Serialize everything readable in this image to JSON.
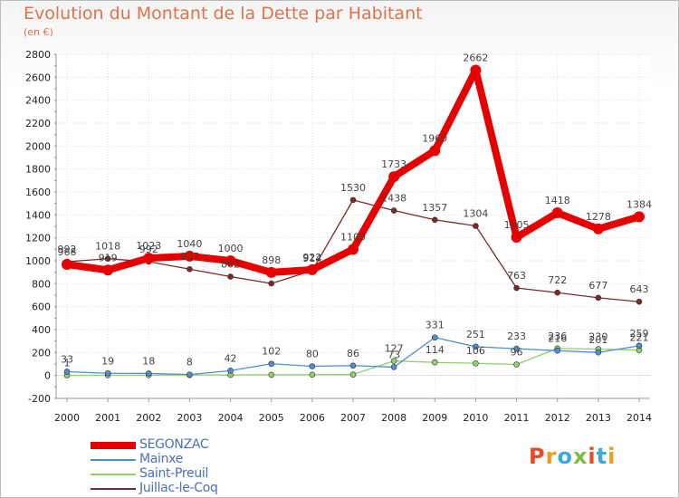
{
  "title": "Evolution du Montant de la Dette par Habitant",
  "unit": "(en €)",
  "logo": {
    "text": "Proxiti",
    "letters": [
      "P",
      "r",
      "o",
      "x",
      "i",
      "t",
      "i"
    ],
    "colors": [
      "#e84b23",
      "#f39a1b",
      "#3aa7e0",
      "#7bbf3c",
      "#e84b23",
      "#3aa7e0",
      "#f39a1b"
    ]
  },
  "chart_data": {
    "type": "line",
    "title": "Evolution du Montant de la Dette par Habitant",
    "ylabel": "(en €)",
    "x": [
      "2000",
      "2001",
      "2002",
      "2003",
      "2004",
      "2005",
      "2006",
      "2007",
      "2008",
      "2009",
      "2010",
      "2011",
      "2012",
      "2013",
      "2014"
    ],
    "ylim": [
      -200,
      2800
    ],
    "yticks": [
      -200,
      0,
      200,
      400,
      600,
      800,
      1000,
      1200,
      1400,
      1600,
      1800,
      2000,
      2200,
      2400,
      2600,
      2800
    ],
    "grid": true,
    "legend": "bottom",
    "series": [
      {
        "name": "SEGONZAC",
        "color": "#e60000",
        "values": [
          968,
          919,
          1023,
          1040,
          1000,
          898,
          922,
          1100,
          1733,
          1960,
          2662,
          1205,
          1418,
          1278,
          1384
        ]
      },
      {
        "name": "Mainxe",
        "color": "#4f8fcf",
        "values": [
          33,
          19,
          18,
          8,
          42,
          102,
          80,
          86,
          73,
          331,
          251,
          233,
          216,
          201,
          259
        ]
      },
      {
        "name": "Saint-Preuil",
        "color": "#8fd16b",
        "values": [
          1,
          2,
          3,
          4,
          5,
          6,
          7,
          8,
          127,
          114,
          106,
          96,
          236,
          230,
          221
        ]
      },
      {
        "name": "Juillac-le-Coq",
        "color": "#7a2a2a",
        "values": [
          992,
          1018,
          992,
          927,
          862,
          802,
          914,
          1530,
          1438,
          1357,
          1304,
          763,
          722,
          677,
          643
        ]
      }
    ],
    "labels": {
      "SEGONZAC": [
        "968",
        "919",
        "1023",
        "1040",
        "1000",
        "898",
        "922",
        "1100",
        "1733",
        "1960",
        "2662",
        "1205",
        "1418",
        "1278",
        "1384"
      ],
      "Mainxe": [
        "33",
        "19",
        "18",
        "8",
        "42",
        "102",
        "80",
        "86",
        "73",
        "331",
        "251",
        "233",
        "216",
        "201",
        "259"
      ],
      "Saint-Preuil": [
        "1",
        "",
        "",
        "",
        "",
        "",
        "",
        "",
        "127",
        "114",
        "106",
        "96",
        "236",
        "230",
        "221"
      ],
      "Juillac-le-Coq": [
        "992",
        "1018",
        "992",
        "927",
        "862",
        "",
        "914",
        "1530",
        "1438",
        "1357",
        "1304",
        "763",
        "722",
        "677",
        "643"
      ]
    }
  }
}
